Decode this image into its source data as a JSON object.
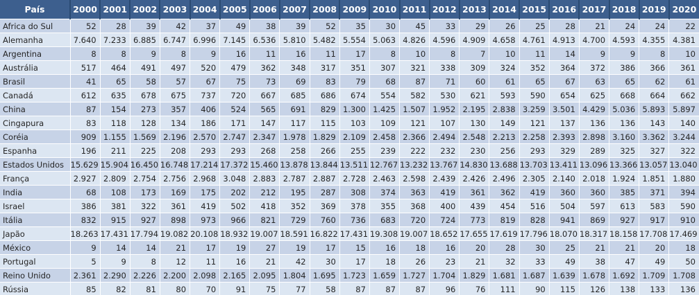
{
  "colors": {
    "header_bg": "#3D5F8E",
    "header_divider": "#2A4A72",
    "band_dark": "#C7D3E7",
    "band_light": "#DCE6F2",
    "gridline": "#FFFFFF",
    "header_text": "#FFFFFF",
    "cell_text": "#252525"
  },
  "chart_data": {
    "type": "table",
    "columns": [
      "País",
      "2000",
      "2001",
      "2002",
      "2003",
      "2004",
      "2005",
      "2006",
      "2007",
      "2008",
      "2009",
      "2010",
      "2011",
      "2012",
      "2013",
      "2014",
      "2015",
      "2016",
      "2017",
      "2018",
      "2019",
      "2020"
    ],
    "rows": [
      {
        "label": "Africa do Sul",
        "values": [
          "52",
          "28",
          "39",
          "42",
          "37",
          "49",
          "38",
          "39",
          "52",
          "35",
          "30",
          "45",
          "33",
          "29",
          "26",
          "25",
          "28",
          "21",
          "24",
          "24",
          "22"
        ]
      },
      {
        "label": "Alemanha",
        "values": [
          "7.640",
          "7.233",
          "6.885",
          "6.747",
          "6.996",
          "7.145",
          "6.536",
          "5.810",
          "5.482",
          "5.554",
          "5.063",
          "4.826",
          "4.596",
          "4.909",
          "4.658",
          "4.761",
          "4.913",
          "4.700",
          "4.593",
          "4.355",
          "4.381"
        ]
      },
      {
        "label": "Argentina",
        "values": [
          "8",
          "8",
          "9",
          "8",
          "9",
          "16",
          "11",
          "16",
          "11",
          "17",
          "8",
          "10",
          "8",
          "7",
          "10",
          "11",
          "14",
          "9",
          "9",
          "8",
          "10"
        ]
      },
      {
        "label": "Austrália",
        "values": [
          "517",
          "464",
          "491",
          "497",
          "520",
          "479",
          "362",
          "348",
          "317",
          "351",
          "307",
          "321",
          "338",
          "309",
          "324",
          "352",
          "364",
          "372",
          "386",
          "366",
          "361"
        ]
      },
      {
        "label": "Brasil",
        "values": [
          "41",
          "65",
          "58",
          "57",
          "67",
          "75",
          "73",
          "69",
          "83",
          "79",
          "68",
          "87",
          "71",
          "60",
          "61",
          "65",
          "67",
          "63",
          "65",
          "62",
          "61"
        ]
      },
      {
        "label": "Canadá",
        "values": [
          "612",
          "635",
          "678",
          "675",
          "737",
          "720",
          "667",
          "685",
          "686",
          "674",
          "554",
          "582",
          "530",
          "621",
          "593",
          "590",
          "654",
          "625",
          "668",
          "664",
          "662"
        ]
      },
      {
        "label": "China",
        "values": [
          "87",
          "154",
          "273",
          "357",
          "406",
          "524",
          "565",
          "691",
          "829",
          "1.300",
          "1.425",
          "1.507",
          "1.952",
          "2.195",
          "2.838",
          "3.259",
          "3.501",
          "4.429",
          "5.036",
          "5.893",
          "5.897"
        ]
      },
      {
        "label": "Cingapura",
        "values": [
          "83",
          "118",
          "128",
          "134",
          "186",
          "171",
          "147",
          "117",
          "115",
          "103",
          "109",
          "121",
          "107",
          "130",
          "149",
          "121",
          "137",
          "136",
          "136",
          "143",
          "140"
        ]
      },
      {
        "label": "Coréia",
        "values": [
          "909",
          "1.155",
          "1.569",
          "2.196",
          "2.570",
          "2.747",
          "2.347",
          "1.978",
          "1.829",
          "2.109",
          "2.458",
          "2.366",
          "2.494",
          "2.548",
          "2.213",
          "2.258",
          "2.393",
          "2.898",
          "3.160",
          "3.362",
          "3.244"
        ]
      },
      {
        "label": "Espanha",
        "values": [
          "196",
          "211",
          "225",
          "208",
          "293",
          "293",
          "268",
          "258",
          "266",
          "255",
          "239",
          "222",
          "232",
          "230",
          "256",
          "293",
          "329",
          "289",
          "325",
          "327",
          "322"
        ]
      },
      {
        "label": "Estados Unidos",
        "values": [
          "15.629",
          "15.904",
          "16.450",
          "16.748",
          "17.214",
          "17.372",
          "15.460",
          "13.878",
          "13.844",
          "13.511",
          "12.767",
          "13.232",
          "13.767",
          "14.830",
          "13.688",
          "13.703",
          "13.411",
          "13.096",
          "13.366",
          "13.057",
          "13.040"
        ]
      },
      {
        "label": "França",
        "values": [
          "2.927",
          "2.809",
          "2.754",
          "2.756",
          "2.968",
          "3.048",
          "2.883",
          "2.787",
          "2.887",
          "2.728",
          "2.463",
          "2.598",
          "2.439",
          "2.426",
          "2.496",
          "2.305",
          "2.140",
          "2.018",
          "1.924",
          "1.851",
          "1.880"
        ]
      },
      {
        "label": "India",
        "values": [
          "68",
          "108",
          "173",
          "169",
          "175",
          "202",
          "212",
          "195",
          "287",
          "308",
          "374",
          "363",
          "419",
          "361",
          "362",
          "419",
          "360",
          "360",
          "385",
          "371",
          "394"
        ]
      },
      {
        "label": "Israel",
        "values": [
          "386",
          "381",
          "322",
          "361",
          "419",
          "502",
          "418",
          "352",
          "369",
          "378",
          "355",
          "368",
          "400",
          "439",
          "454",
          "516",
          "504",
          "597",
          "613",
          "583",
          "590"
        ]
      },
      {
        "label": "Itália",
        "values": [
          "832",
          "915",
          "927",
          "898",
          "973",
          "966",
          "821",
          "729",
          "760",
          "736",
          "683",
          "720",
          "724",
          "773",
          "819",
          "828",
          "941",
          "869",
          "927",
          "917",
          "910"
        ]
      },
      {
        "label": "Japão",
        "values": [
          "18.263",
          "17.431",
          "17.794",
          "19.082",
          "20.108",
          "18.932",
          "19.007",
          "18.591",
          "16.822",
          "17.431",
          "19.308",
          "19.007",
          "18.652",
          "17.655",
          "17.619",
          "17.796",
          "18.070",
          "18.317",
          "18.158",
          "17.708",
          "17.469"
        ]
      },
      {
        "label": "México",
        "values": [
          "9",
          "14",
          "14",
          "21",
          "17",
          "19",
          "27",
          "19",
          "17",
          "15",
          "16",
          "18",
          "16",
          "20",
          "28",
          "30",
          "25",
          "21",
          "21",
          "20",
          "18"
        ]
      },
      {
        "label": "Portugal",
        "values": [
          "5",
          "9",
          "8",
          "12",
          "11",
          "16",
          "21",
          "42",
          "30",
          "17",
          "18",
          "26",
          "23",
          "21",
          "32",
          "33",
          "49",
          "38",
          "47",
          "49",
          "50"
        ]
      },
      {
        "label": "Reino Unido",
        "values": [
          "2.361",
          "2.290",
          "2.226",
          "2.200",
          "2.098",
          "2.165",
          "2.095",
          "1.804",
          "1.695",
          "1.723",
          "1.659",
          "1.727",
          "1.704",
          "1.829",
          "1.681",
          "1.687",
          "1.639",
          "1.678",
          "1.692",
          "1.709",
          "1.708"
        ]
      },
      {
        "label": "Rússia",
        "values": [
          "85",
          "82",
          "81",
          "80",
          "70",
          "91",
          "75",
          "77",
          "58",
          "87",
          "87",
          "87",
          "96",
          "76",
          "111",
          "90",
          "115",
          "126",
          "138",
          "133",
          "136"
        ]
      }
    ]
  }
}
